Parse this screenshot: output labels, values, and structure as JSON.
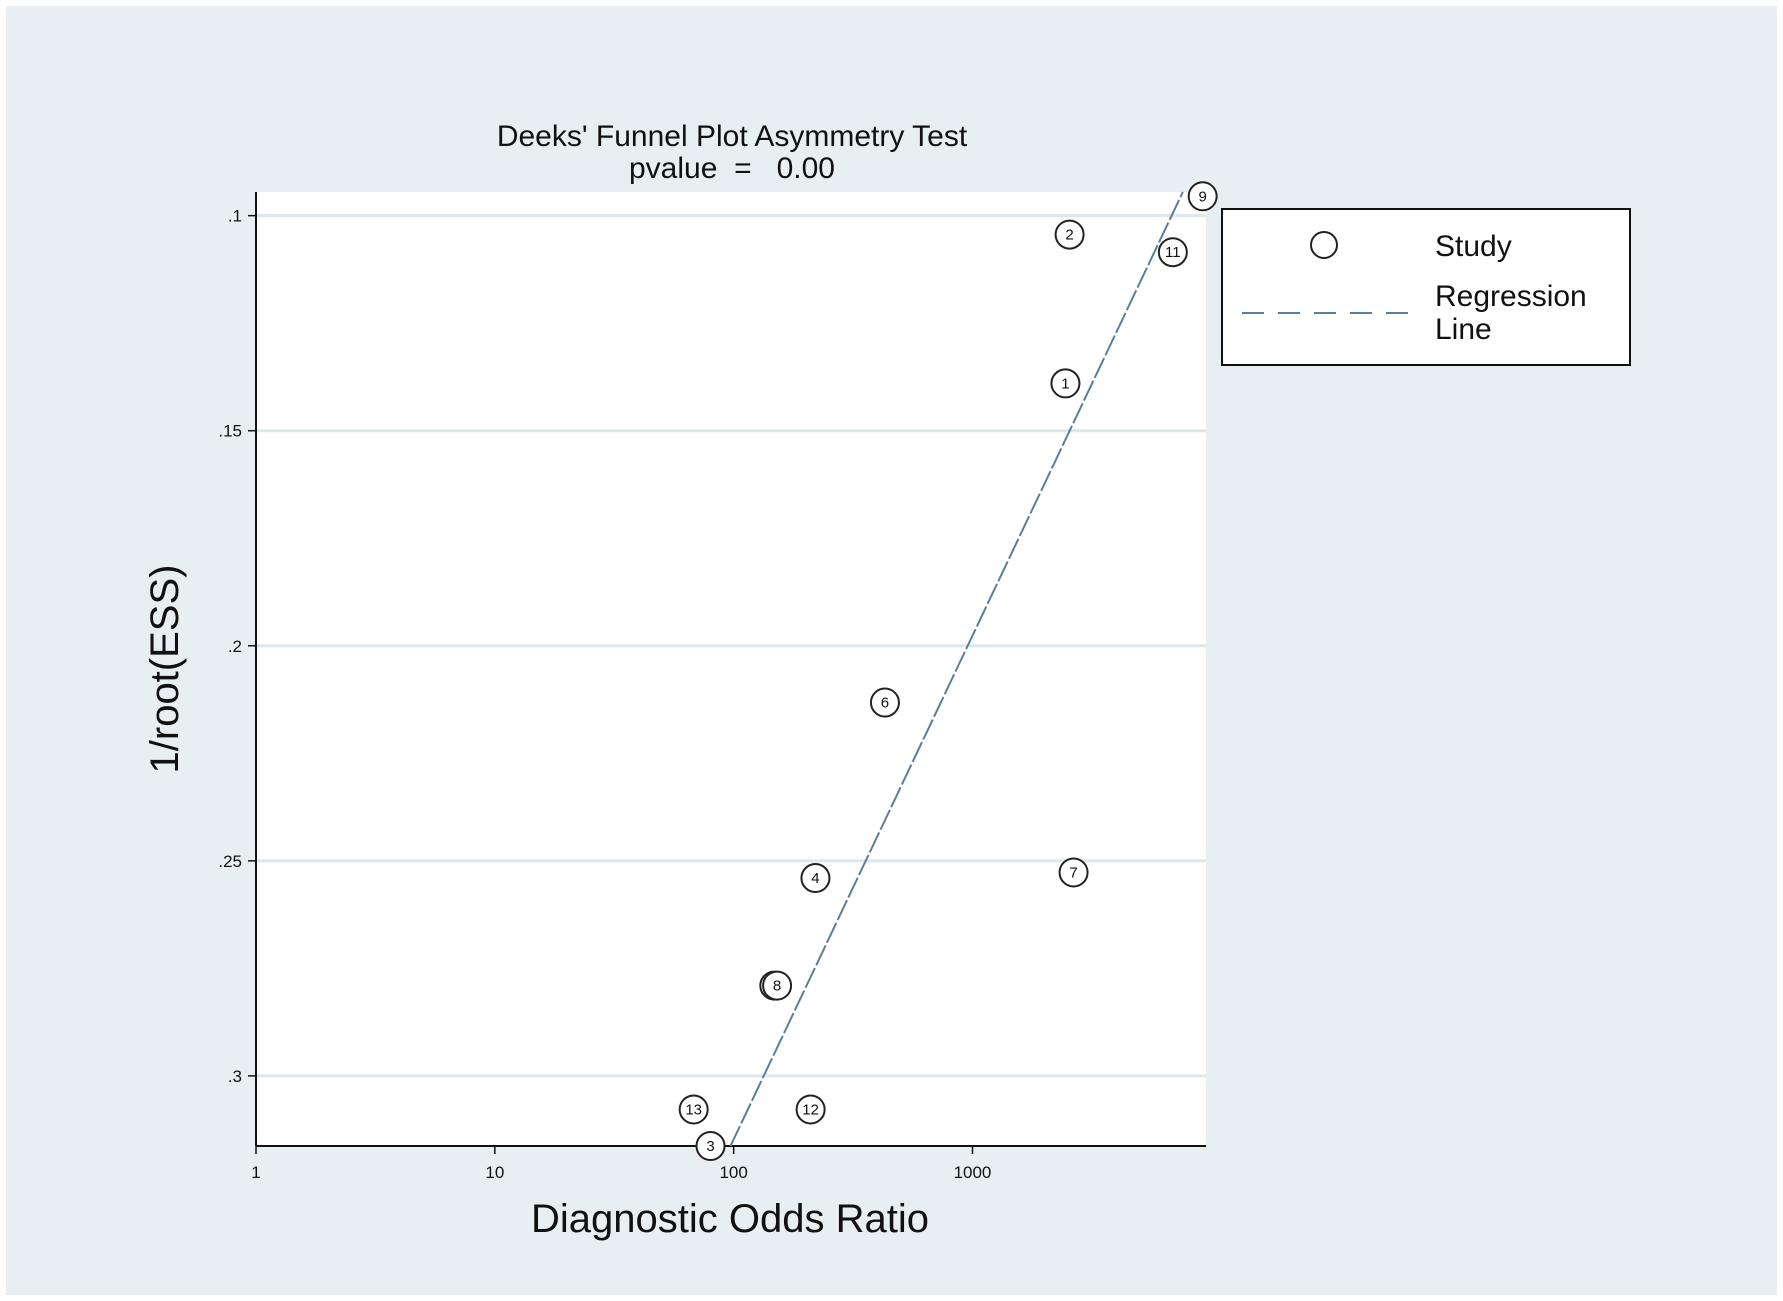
{
  "chart_data": {
    "type": "scatter",
    "title": "Deeks' Funnel Plot Asymmetry Test",
    "subtitle": "pvalue  =   0.00",
    "xlabel": "Diagnostic Odds Ratio",
    "ylabel": "1/root(ESS)",
    "xscale": "log",
    "xlim": [
      1,
      9500
    ],
    "ylim": [
      0.0945,
      0.3163
    ],
    "y_reversed": true,
    "grid": "horizontal",
    "legend_position": "right",
    "x_ticks": [
      1,
      10,
      100,
      1000
    ],
    "x_tick_labels": [
      "1",
      "10",
      "100",
      "1000"
    ],
    "y_ticks": [
      0.1,
      0.15,
      0.2,
      0.25,
      0.3
    ],
    "y_tick_labels": [
      ".1",
      ".15",
      ".2",
      ".25",
      ".3"
    ],
    "series": [
      {
        "name": "Study",
        "points": [
          {
            "label": "9",
            "x": 9200,
            "y": 0.0955
          },
          {
            "label": "2",
            "x": 2550,
            "y": 0.1044
          },
          {
            "label": "11",
            "x": 6900,
            "y": 0.1085
          },
          {
            "label": "1",
            "x": 2450,
            "y": 0.139
          },
          {
            "label": "6",
            "x": 430,
            "y": 0.2132
          },
          {
            "label": "7",
            "x": 2650,
            "y": 0.2527
          },
          {
            "label": "4",
            "x": 220,
            "y": 0.254
          },
          {
            "label": "10",
            "x": 148,
            "y": 0.279
          },
          {
            "label": "8",
            "x": 152,
            "y": 0.279
          },
          {
            "label": "13",
            "x": 68,
            "y": 0.3078
          },
          {
            "label": "12",
            "x": 210,
            "y": 0.3078
          },
          {
            "label": "3",
            "x": 80,
            "y": 0.3163
          }
        ]
      },
      {
        "name": "Regression Line",
        "line": [
          {
            "x": 97,
            "y": 0.3163
          },
          {
            "x": 7600,
            "y": 0.0945
          }
        ]
      }
    ],
    "legend": {
      "items": [
        "Study",
        "Regression Line"
      ]
    }
  },
  "colors": {
    "background": "#e8eff2",
    "plot_area": "#ffffff",
    "grid": "#dbe7ea",
    "regression_line": "#5a7f9a",
    "marker_stroke": "#222222"
  }
}
